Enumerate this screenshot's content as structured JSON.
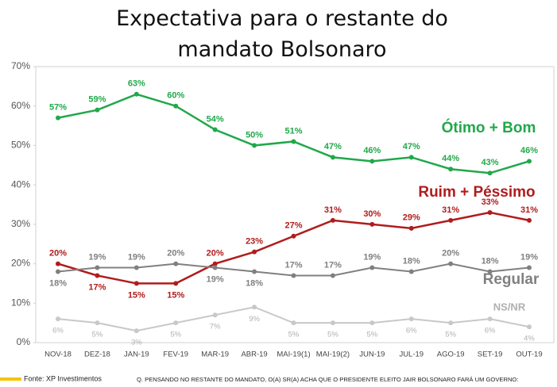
{
  "chart_data": {
    "type": "line",
    "title": "Expectativa para o restante do mandato Bolsonaro",
    "categories": [
      "NOV-18",
      "DEZ-18",
      "JAN-19",
      "FEV-19",
      "MAR-19",
      "ABR-19",
      "MAI-19(1)",
      "MAI-19(2)",
      "JUN-19",
      "JUL-19",
      "AGO-19",
      "SET-19",
      "OUT-19"
    ],
    "series": [
      {
        "name": "Ótimo + Bom",
        "color": "#21a84a",
        "values": [
          57,
          59,
          63,
          60,
          54,
          50,
          51,
          47,
          46,
          47,
          44,
          43,
          46
        ],
        "value_labels": [
          "57%",
          "59%",
          "63%",
          "60%",
          "54%",
          "50%",
          "51%",
          "47%",
          "46%",
          "47%",
          "44%",
          "43%",
          "46%"
        ]
      },
      {
        "name": "Ruim + Péssimo",
        "color": "#b01c1c",
        "values": [
          20,
          17,
          15,
          15,
          20,
          23,
          27,
          31,
          30,
          29,
          31,
          33,
          31
        ],
        "value_labels": [
          "20%",
          "17%",
          "15%",
          "15%",
          "20%",
          "23%",
          "27%",
          "31%",
          "30%",
          "29%",
          "31%",
          "33%",
          "31%"
        ]
      },
      {
        "name": "Regular",
        "color": "#808080",
        "values": [
          18,
          19,
          19,
          20,
          19,
          18,
          17,
          17,
          19,
          18,
          20,
          18,
          19
        ],
        "value_labels": [
          "18%",
          "19%",
          "19%",
          "20%",
          "19%",
          "18%",
          "17%",
          "17%",
          "19%",
          "18%",
          "20%",
          "18%",
          "19%"
        ]
      },
      {
        "name": "NS/NR",
        "color": "#c8c8c8",
        "values": [
          6,
          5,
          3,
          5,
          7,
          9,
          5,
          5,
          5,
          6,
          5,
          6,
          4
        ],
        "value_labels": [
          "6%",
          "5%",
          "3%",
          "5%",
          "7%",
          "9%",
          "5%",
          "5%",
          "5%",
          "6%",
          "5%",
          "6%",
          "4%"
        ]
      }
    ],
    "ylim": [
      0,
      70
    ],
    "yticks": [
      {
        "value": 0,
        "label": "0%"
      },
      {
        "value": 10,
        "label": "10%"
      },
      {
        "value": 20,
        "label": "20%"
      },
      {
        "value": 30,
        "label": "30%"
      },
      {
        "value": 40,
        "label": "40%"
      },
      {
        "value": 50,
        "label": "50%"
      },
      {
        "value": 60,
        "label": "60%"
      },
      {
        "value": 70,
        "label": "70%"
      }
    ],
    "grid": false,
    "source": "Fonte: XP Investimentos",
    "note": "Q. PENSANDO NO RESTANTE DO MANDATO, O(A) SR(A) ACHA QUE O PRESIDENTE ELEITO JAIR BOLSONARO FARÁ UM GOVERNO:"
  }
}
